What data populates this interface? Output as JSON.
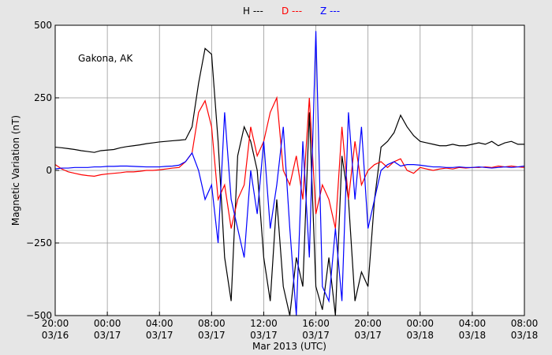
{
  "chart_data": {
    "type": "line",
    "annotation": "Gakona, AK",
    "x_label": "Mar 2013 (UTC)",
    "y_label": "Magnetic Variation (nT)",
    "x": [
      "2013-03-16T20:00",
      "2013-03-16T20:30",
      "2013-03-16T21:00",
      "2013-03-16T21:30",
      "2013-03-16T22:00",
      "2013-03-16T22:30",
      "2013-03-16T23:00",
      "2013-03-16T23:30",
      "2013-03-17T00:00",
      "2013-03-17T00:30",
      "2013-03-17T01:00",
      "2013-03-17T01:30",
      "2013-03-17T02:00",
      "2013-03-17T02:30",
      "2013-03-17T03:00",
      "2013-03-17T03:30",
      "2013-03-17T04:00",
      "2013-03-17T04:30",
      "2013-03-17T05:00",
      "2013-03-17T05:30",
      "2013-03-17T06:00",
      "2013-03-17T06:30",
      "2013-03-17T07:00",
      "2013-03-17T07:30",
      "2013-03-17T08:00",
      "2013-03-17T08:30",
      "2013-03-17T09:00",
      "2013-03-17T09:30",
      "2013-03-17T10:00",
      "2013-03-17T10:30",
      "2013-03-17T11:00",
      "2013-03-17T11:30",
      "2013-03-17T12:00",
      "2013-03-17T12:30",
      "2013-03-17T13:00",
      "2013-03-17T13:30",
      "2013-03-17T14:00",
      "2013-03-17T14:30",
      "2013-03-17T15:00",
      "2013-03-17T15:30",
      "2013-03-17T16:00",
      "2013-03-17T16:30",
      "2013-03-17T17:00",
      "2013-03-17T17:30",
      "2013-03-17T18:00",
      "2013-03-17T18:30",
      "2013-03-17T19:00",
      "2013-03-17T19:30",
      "2013-03-17T20:00",
      "2013-03-17T20:30",
      "2013-03-17T21:00",
      "2013-03-17T21:30",
      "2013-03-17T22:00",
      "2013-03-17T22:30",
      "2013-03-17T23:00",
      "2013-03-17T23:30",
      "2013-03-18T00:00",
      "2013-03-18T00:30",
      "2013-03-18T01:00",
      "2013-03-18T01:30",
      "2013-03-18T02:00",
      "2013-03-18T02:30",
      "2013-03-18T03:00",
      "2013-03-18T03:30",
      "2013-03-18T04:00",
      "2013-03-18T04:30",
      "2013-03-18T05:00",
      "2013-03-18T05:30",
      "2013-03-18T06:00",
      "2013-03-18T06:30",
      "2013-03-18T07:00",
      "2013-03-18T07:30",
      "2013-03-18T08:00"
    ],
    "series": [
      {
        "name": "H ---",
        "color": "#000000",
        "values": [
          80,
          78,
          75,
          72,
          68,
          65,
          62,
          68,
          70,
          72,
          78,
          82,
          85,
          88,
          92,
          95,
          98,
          100,
          102,
          104,
          106,
          150,
          300,
          420,
          400,
          100,
          -300,
          -450,
          50,
          150,
          100,
          0,
          -300,
          -450,
          -100,
          -400,
          -500,
          -300,
          -400,
          200,
          -400,
          -480,
          -300,
          -500,
          50,
          -100,
          -450,
          -350,
          -400,
          -100,
          80,
          100,
          130,
          190,
          150,
          120,
          100,
          95,
          90,
          85,
          85,
          90,
          85,
          85,
          90,
          95,
          90,
          100,
          85,
          95,
          100,
          90,
          90
        ]
      },
      {
        "name": "D ---",
        "color": "#ff0000",
        "values": [
          20,
          5,
          -5,
          -10,
          -15,
          -18,
          -20,
          -15,
          -12,
          -10,
          -8,
          -5,
          -5,
          -3,
          0,
          0,
          2,
          5,
          8,
          10,
          30,
          60,
          200,
          240,
          150,
          -100,
          -50,
          -200,
          -100,
          -50,
          150,
          50,
          100,
          200,
          250,
          0,
          -50,
          50,
          -100,
          250,
          -150,
          -50,
          -100,
          -200,
          150,
          -100,
          100,
          -50,
          0,
          20,
          30,
          10,
          30,
          40,
          0,
          -10,
          10,
          5,
          0,
          5,
          8,
          5,
          10,
          8,
          10,
          10,
          12,
          10,
          15,
          12,
          15,
          12,
          10
        ]
      },
      {
        "name": "Z ---",
        "color": "#0000ff",
        "values": [
          5,
          8,
          8,
          10,
          10,
          10,
          12,
          12,
          14,
          14,
          15,
          15,
          14,
          13,
          12,
          12,
          12,
          14,
          15,
          18,
          30,
          60,
          0,
          -100,
          -50,
          -250,
          200,
          -100,
          -200,
          -300,
          0,
          -150,
          100,
          -200,
          -50,
          150,
          -200,
          -500,
          100,
          -300,
          480,
          -400,
          -450,
          -200,
          -450,
          200,
          -100,
          150,
          -200,
          -100,
          0,
          20,
          30,
          15,
          20,
          20,
          18,
          15,
          12,
          12,
          10,
          10,
          12,
          10,
          10,
          12,
          10,
          8,
          10,
          12,
          10,
          12,
          15
        ]
      }
    ],
    "xlim": [
      "2013-03-16T20:00",
      "2013-03-18T08:00"
    ],
    "xticks": [
      {
        "value": "2013-03-16T20:00",
        "label": [
          "20:00",
          "03/16"
        ]
      },
      {
        "value": "2013-03-17T00:00",
        "label": [
          "00:00",
          "03/17"
        ]
      },
      {
        "value": "2013-03-17T04:00",
        "label": [
          "04:00",
          "03/17"
        ]
      },
      {
        "value": "2013-03-17T08:00",
        "label": [
          "08:00",
          "03/17"
        ]
      },
      {
        "value": "2013-03-17T12:00",
        "label": [
          "12:00",
          "03/17"
        ]
      },
      {
        "value": "2013-03-17T16:00",
        "label": [
          "16:00",
          "03/17"
        ]
      },
      {
        "value": "2013-03-17T20:00",
        "label": [
          "20:00",
          "03/17"
        ]
      },
      {
        "value": "2013-03-18T00:00",
        "label": [
          "00:00",
          "03/18"
        ]
      },
      {
        "value": "2013-03-18T04:00",
        "label": [
          "04:00",
          "03/18"
        ]
      },
      {
        "value": "2013-03-18T08:00",
        "label": [
          "08:00",
          "03/18"
        ]
      }
    ],
    "ylim": [
      -500,
      500
    ],
    "yticks": [
      {
        "value": -500,
        "label": "−500"
      },
      {
        "value": -250,
        "label": "−250"
      },
      0,
      250,
      500
    ],
    "grid": true
  }
}
